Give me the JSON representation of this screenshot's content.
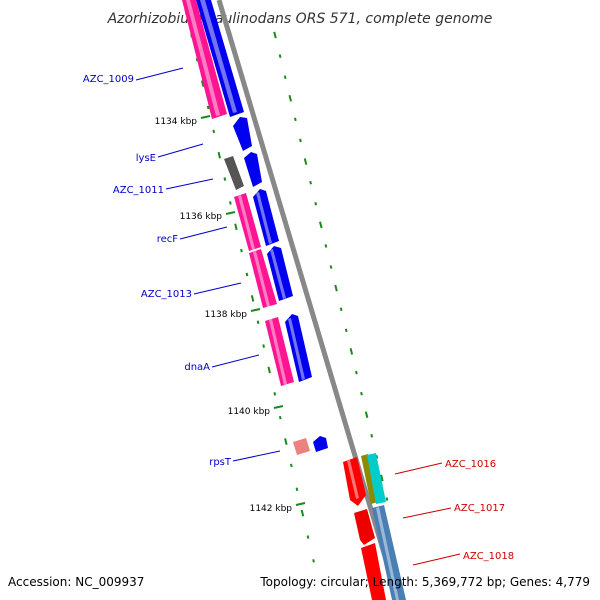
{
  "title": "Azorhizobium caulinodans ORS 571, complete genome",
  "footer": {
    "accession": "Accession: NC_009937",
    "summary": "Topology: circular; Length: 5,369,772 bp; Genes: 4,779"
  },
  "colors": {
    "backbone": "#888888",
    "tick": "#1a8a1a",
    "gene_label_left": "#0000cc",
    "gene_label_right": "#cc0000",
    "kbp_label": "#000000"
  },
  "kbp_ticks": [
    {
      "label": "1134 kbp",
      "kbp": 1134
    },
    {
      "label": "1136 kbp",
      "kbp": 1136
    },
    {
      "label": "1138 kbp",
      "kbp": 1138
    },
    {
      "label": "1140 kbp",
      "kbp": 1140
    },
    {
      "label": "1142 kbp",
      "kbp": 1142
    }
  ],
  "genes_left": [
    {
      "label": "AZC_1009"
    },
    {
      "label": "lysE"
    },
    {
      "label": "AZC_1011"
    },
    {
      "label": "recF"
    },
    {
      "label": "AZC_1013"
    },
    {
      "label": "dnaA"
    },
    {
      "label": "rpsT"
    }
  ],
  "genes_right": [
    {
      "label": "AZC_1016"
    },
    {
      "label": "AZC_1017"
    },
    {
      "label": "AZC_1018"
    }
  ]
}
